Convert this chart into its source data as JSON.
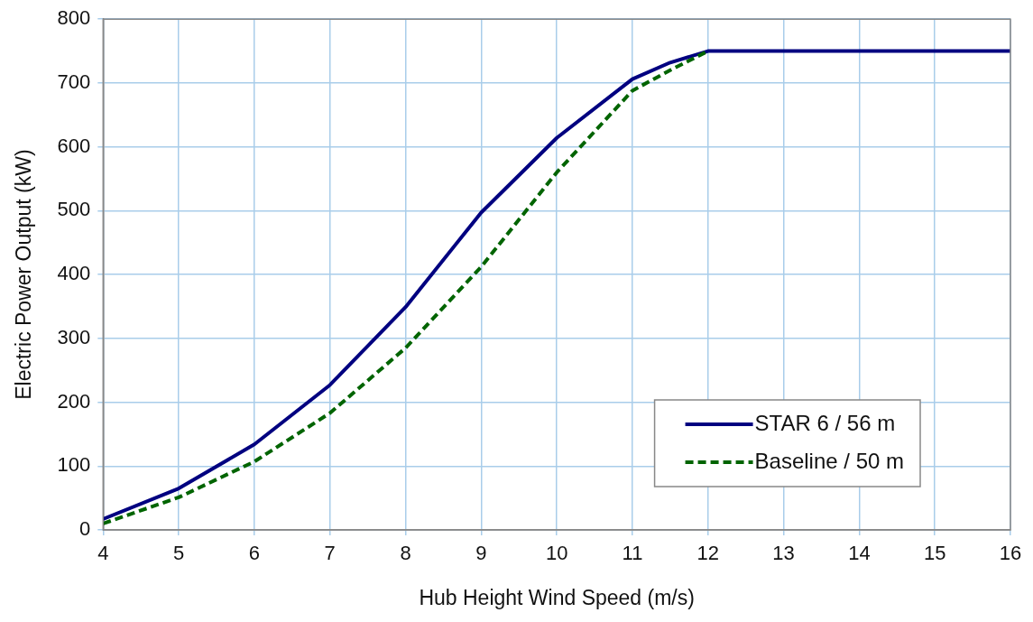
{
  "chart_data": {
    "type": "line",
    "xlabel": "Hub Height Wind Speed (m/s)",
    "ylabel": "Electric Power Output (kW)",
    "xlim": [
      4,
      16
    ],
    "xticks": [
      4,
      5,
      6,
      7,
      8,
      9,
      10,
      11,
      12,
      13,
      14,
      15,
      16
    ],
    "ylim": [
      0,
      800
    ],
    "yticks": [
      0,
      100,
      200,
      300,
      400,
      500,
      600,
      700,
      800
    ],
    "grid": true,
    "legend": "bottom right",
    "marker": "none",
    "series": [
      {
        "name": "STAR 6 / 56 m",
        "color": "#000080",
        "line_style": "solid",
        "x": [
          4,
          5,
          6,
          7,
          8,
          9,
          10,
          11,
          11.5,
          12,
          13,
          14,
          15,
          16
        ],
        "values": [
          17,
          65,
          134,
          227,
          349,
          497,
          614,
          706,
          732,
          750,
          750,
          750,
          750,
          750
        ]
      },
      {
        "name": "Baseline / 50 m",
        "color": "#006400",
        "line_style": "dashed",
        "x": [
          4,
          5,
          6,
          7,
          8,
          9,
          10,
          11,
          11.5,
          12
        ],
        "values": [
          10,
          51,
          107,
          183,
          285,
          412,
          560,
          688,
          720,
          750
        ]
      }
    ]
  }
}
